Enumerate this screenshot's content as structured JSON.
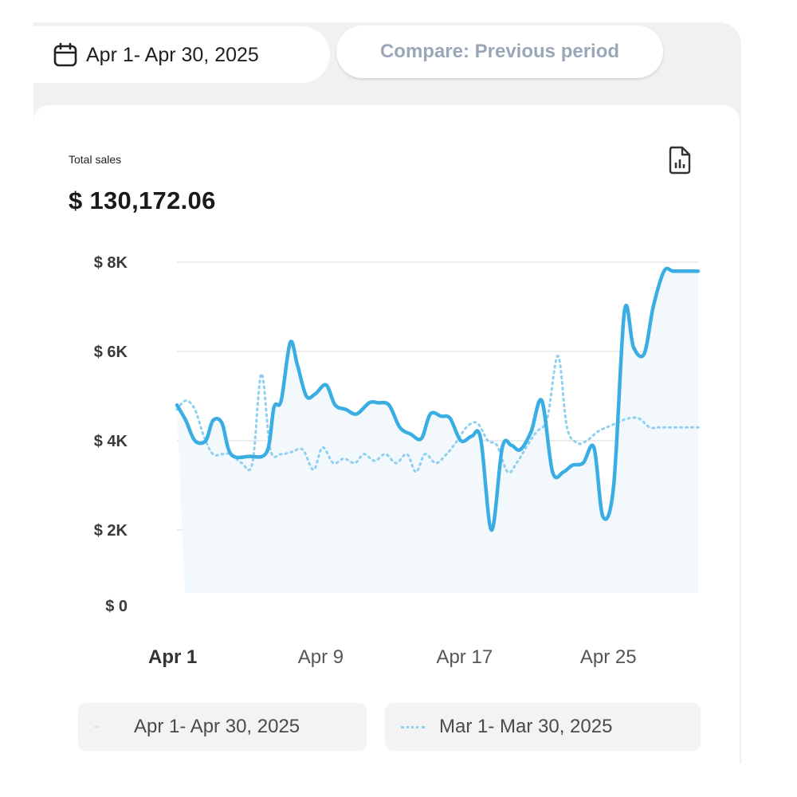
{
  "header": {
    "date_range": "Apr 1- Apr 30, 2025",
    "compare_label": "Compare: Previous period",
    "calendar_icon": "calendar-icon"
  },
  "card": {
    "metric_label": "Total sales",
    "metric_value": "$ 130,172.06",
    "report_icon": "report-icon"
  },
  "legend": {
    "current": "Apr 1- Apr 30, 2025",
    "previous": "Mar 1- Mar 30, 2025"
  },
  "colors": {
    "current": "#3aaee3",
    "previous": "#8fd0f0",
    "grid": "#ececec"
  },
  "chart_data": {
    "type": "line",
    "ylim": [
      0,
      8000
    ],
    "yticks": [
      0,
      2000,
      4000,
      6000,
      8000
    ],
    "ytick_labels": [
      "$ 0",
      "$ 2K",
      "$ 4K",
      "$ 6K",
      "$ 8K"
    ],
    "xlim": [
      1,
      30
    ],
    "xticks": [
      1,
      9,
      17,
      25
    ],
    "xtick_labels": [
      "Apr 1",
      "Apr 9",
      "Apr 17",
      "Apr 25"
    ],
    "series": [
      {
        "name": "Apr 1- Apr 30, 2025",
        "style": "solid",
        "x": [
          1,
          1.5,
          2,
          2.6,
          3,
          3.5,
          4,
          5,
          6,
          6.4,
          6.8,
          7.3,
          7.7,
          8.2,
          8.7,
          9.3,
          9.8,
          10.4,
          11,
          11.7,
          12.2,
          12.8,
          13.4,
          14,
          14.6,
          15.1,
          15.7,
          16.2,
          16.8,
          17.4,
          17.9,
          18.5,
          19.1,
          19.6,
          20.1,
          20.7,
          21.3,
          21.9,
          22.5,
          23,
          23.6,
          24.2,
          24.7,
          25.3,
          25.9,
          26.4,
          27,
          27.5,
          28.1,
          28.6,
          29.2,
          29.8,
          30
        ],
        "y": [
          4800,
          4450,
          4000,
          4000,
          4450,
          4400,
          3700,
          3650,
          3750,
          4750,
          4900,
          6200,
          5700,
          5000,
          5050,
          5250,
          4800,
          4700,
          4600,
          4850,
          4850,
          4800,
          4300,
          4150,
          4050,
          4600,
          4550,
          4500,
          4000,
          4100,
          4050,
          2000,
          3850,
          3900,
          3800,
          4200,
          4900,
          3300,
          3300,
          3450,
          3500,
          3850,
          2300,
          3000,
          6900,
          6100,
          5950,
          7000,
          7800,
          7800,
          7800,
          7800,
          7800
        ]
      },
      {
        "name": "Mar 1- Mar 30, 2025",
        "style": "dotted",
        "x": [
          1,
          1.5,
          2,
          2.5,
          3,
          3.5,
          4,
          4.6,
          5.2,
          5.7,
          6.2,
          6.8,
          7.4,
          8,
          8.6,
          9.1,
          9.7,
          10.3,
          10.9,
          11.4,
          12,
          12.6,
          13.2,
          13.8,
          14.3,
          14.8,
          15.4,
          16,
          16.6,
          17.1,
          17.7,
          18.3,
          18.8,
          19.4,
          19.9,
          20.5,
          21,
          21.6,
          22.2,
          22.7,
          23.3,
          23.8,
          24.4,
          24.9,
          25.5,
          26.1,
          26.7,
          27.3,
          27.8,
          28.4,
          28.9,
          29.4,
          29.9,
          30
        ],
        "y": [
          4700,
          4900,
          4700,
          4100,
          3700,
          3700,
          3700,
          3500,
          3500,
          5500,
          3800,
          3700,
          3750,
          3800,
          3350,
          3850,
          3500,
          3600,
          3500,
          3700,
          3550,
          3700,
          3500,
          3700,
          3300,
          3700,
          3500,
          3700,
          4000,
          4300,
          4400,
          4000,
          3900,
          3300,
          3500,
          3900,
          4200,
          4500,
          5900,
          4300,
          3950,
          4000,
          4200,
          4300,
          4400,
          4500,
          4500,
          4300,
          4300,
          4300,
          4300,
          4300,
          4300,
          4300
        ]
      }
    ]
  }
}
